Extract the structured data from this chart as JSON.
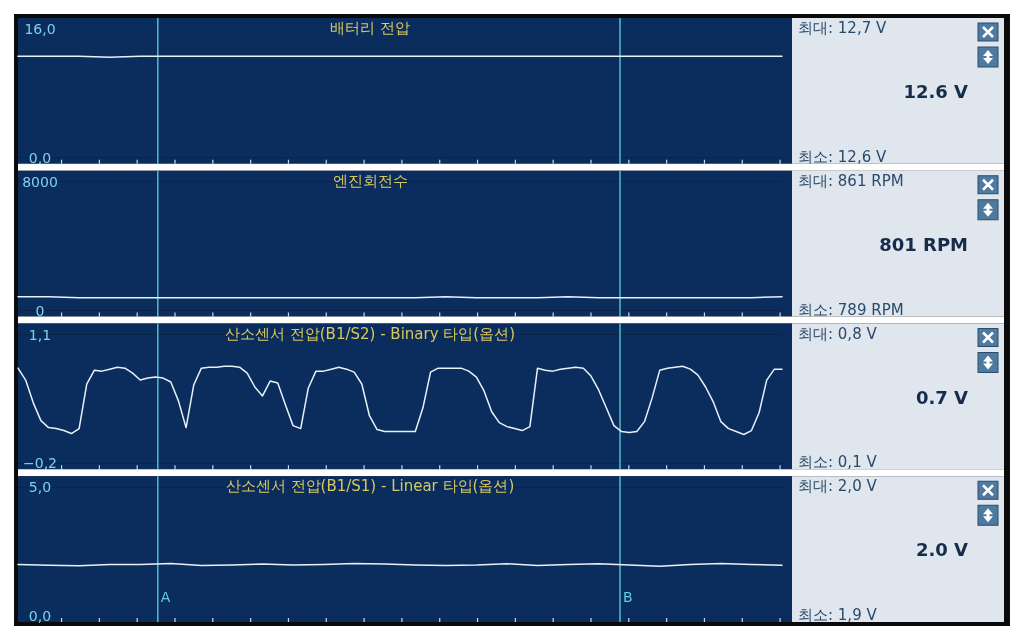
{
  "chart_data": [
    {
      "type": "line",
      "title": "배터리 전압",
      "categories": [
        null,
        null,
        null,
        null,
        null,
        null,
        null,
        null,
        null,
        null,
        null,
        null,
        null,
        null,
        null,
        null,
        null,
        null,
        null,
        null,
        null,
        null,
        null,
        null,
        null,
        null
      ],
      "ylim": [
        0,
        16
      ],
      "yticks": [
        {
          "value": 0,
          "label": "0,0"
        },
        {
          "value": 16,
          "label": "16,0"
        }
      ],
      "tick_labels": "y",
      "series": [
        {
          "color": "#e8f0f8",
          "values": [
            12.6,
            12.6,
            12.6,
            12.5,
            12.6,
            12.6,
            12.6,
            12.6,
            12.6,
            12.6,
            12.6,
            12.6,
            12.6,
            12.6,
            12.6,
            12.6,
            12.6,
            12.6,
            12.6,
            12.6,
            12.6,
            12.6,
            12.6,
            12.6,
            12.6,
            12.6
          ]
        }
      ],
      "annotations": [
        "최대:  12,7 V",
        "12.6 V",
        "최소:  12,6 V"
      ]
    },
    {
      "type": "line",
      "title": "엔진회전수",
      "categories": [
        null,
        null,
        null,
        null,
        null,
        null,
        null,
        null,
        null,
        null,
        null,
        null,
        null,
        null,
        null,
        null,
        null,
        null,
        null,
        null,
        null,
        null,
        null,
        null,
        null,
        null
      ],
      "ylim": [
        0,
        8000
      ],
      "yticks": [
        0,
        8000
      ],
      "tick_labels": "y",
      "series": [
        {
          "color": "#e8f0f8",
          "values": [
            850,
            850,
            800,
            800,
            800,
            800,
            800,
            800,
            800,
            800,
            800,
            800,
            800,
            800,
            850,
            800,
            800,
            800,
            850,
            800,
            800,
            800,
            800,
            800,
            800,
            850
          ]
        }
      ],
      "annotations": [
        "최대:  861 RPM",
        "801 RPM",
        "최소:  789 RPM"
      ]
    },
    {
      "type": "line",
      "title": "산소센서 전압(B1/S2) - Binary 타입(옵션)",
      "categories": [
        null,
        null,
        null,
        null,
        null,
        null,
        null,
        null,
        null,
        null,
        null,
        null,
        null,
        null,
        null,
        null,
        null,
        null,
        null,
        null,
        null,
        null,
        null,
        null,
        null,
        null,
        null,
        null,
        null,
        null,
        null,
        null,
        null,
        null,
        null,
        null,
        null,
        null,
        null,
        null,
        null,
        null,
        null,
        null,
        null,
        null,
        null,
        null,
        null,
        null,
        null,
        null,
        null,
        null,
        null,
        null,
        null,
        null,
        null,
        null,
        null,
        null,
        null,
        null,
        null,
        null,
        null,
        null,
        null,
        null,
        null,
        null,
        null,
        null,
        null,
        null,
        null,
        null,
        null,
        null,
        null,
        null,
        null,
        null,
        null,
        null,
        null,
        null,
        null,
        null,
        null,
        null,
        null,
        null,
        null,
        null,
        null,
        null,
        null,
        null,
        null
      ],
      "ylim": [
        -0.2,
        1.1
      ],
      "yticks": [
        {
          "value": -0.2,
          "label": "−0,2"
        },
        {
          "value": 1.1,
          "label": "1,1"
        }
      ],
      "tick_labels": "y",
      "series": [
        {
          "color": "#e8f0f8",
          "values": [
            0.76,
            0.64,
            0.41,
            0.23,
            0.16,
            0.15,
            0.13,
            0.1,
            0.15,
            0.6,
            0.74,
            0.73,
            0.75,
            0.77,
            0.76,
            0.71,
            0.64,
            0.66,
            0.67,
            0.66,
            0.62,
            0.43,
            0.16,
            0.59,
            0.76,
            0.77,
            0.77,
            0.78,
            0.78,
            0.77,
            0.71,
            0.57,
            0.48,
            0.63,
            0.61,
            0.39,
            0.18,
            0.15,
            0.56,
            0.73,
            0.73,
            0.75,
            0.77,
            0.75,
            0.72,
            0.6,
            0.28,
            0.14,
            0.12,
            0.12,
            0.12,
            0.12,
            0.12,
            0.36,
            0.72,
            0.76,
            0.76,
            0.76,
            0.76,
            0.73,
            0.67,
            0.53,
            0.32,
            0.21,
            0.17,
            0.15,
            0.13,
            0.17,
            0.76,
            0.74,
            0.73,
            0.75,
            0.76,
            0.77,
            0.76,
            0.68,
            0.54,
            0.36,
            0.18,
            0.12,
            0.11,
            0.12,
            0.22,
            0.46,
            0.74,
            0.76,
            0.77,
            0.78,
            0.75,
            0.69,
            0.57,
            0.42,
            0.22,
            0.15,
            0.12,
            0.09,
            0.13,
            0.31,
            0.64,
            0.75,
            0.75
          ]
        }
      ],
      "annotations": [
        "최대:  0,8 V",
        "0.7 V",
        "최소:  0,1 V"
      ]
    },
    {
      "type": "line",
      "title": "산소센서 전압(B1/S1) - Linear 타입(옵션)",
      "categories": [
        null,
        null,
        null,
        null,
        null,
        null,
        null,
        null,
        null,
        null,
        null,
        null,
        null,
        null,
        null,
        null,
        null,
        null,
        null,
        null,
        null,
        null,
        null,
        null,
        null,
        null
      ],
      "ylim": [
        0,
        5
      ],
      "yticks": [
        {
          "value": 0,
          "label": "0,0"
        },
        {
          "value": 5,
          "label": "5,0"
        }
      ],
      "tick_labels": "y",
      "series": [
        {
          "color": "#e8f0f8",
          "values": [
            2.0,
            1.97,
            1.95,
            2.0,
            2.0,
            2.04,
            1.96,
            1.98,
            2.02,
            1.98,
            2.0,
            2.04,
            2.02,
            1.98,
            1.96,
            1.98,
            2.03,
            1.96,
            2.0,
            2.03,
            1.98,
            1.93,
            2.0,
            2.04,
            2.0,
            1.97
          ]
        }
      ],
      "annotations": [
        "최대:  2,0 V",
        "2.0 V",
        "최소:  1,9 V",
        "A",
        "B"
      ]
    }
  ]
}
